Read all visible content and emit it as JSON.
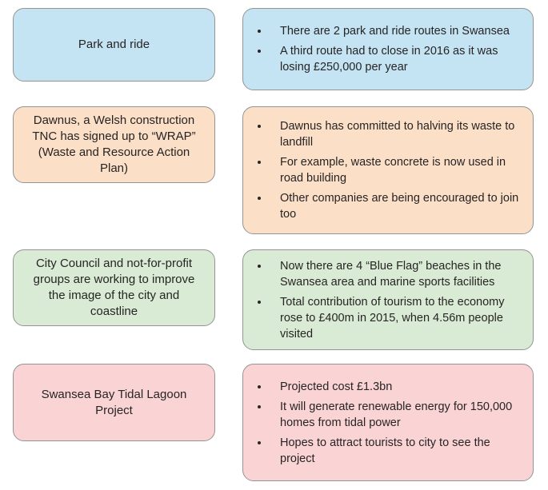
{
  "colors": {
    "row_fills": [
      "#C4E4F3",
      "#FBDFC6",
      "#D9EBD4",
      "#FAD4D5"
    ],
    "box_border": "#949494",
    "text": "#272425"
  },
  "rows": [
    {
      "topic_lines": [
        "Park and ride"
      ],
      "bullets": [
        "There are 2 park and ride routes in Swansea",
        "A third route had to close in 2016 as it was losing £250,000 per year"
      ]
    },
    {
      "topic_lines": [
        "Dawnus, a Welsh construction",
        "TNC has signed up to “WRAP”",
        "(Waste and Resource Action Plan)"
      ],
      "bullets": [
        "Dawnus has committed to halving its waste to landfill",
        "For example, waste concrete is now used in road building",
        "Other companies are being encouraged to join too"
      ]
    },
    {
      "topic_lines": [
        "City Council and not-for-profit",
        "groups are working to improve",
        "the image of the city and",
        "coastline"
      ],
      "bullets": [
        "Now there are 4 “Blue Flag” beaches in the Swansea area and marine sports facilities",
        "Total contribution of tourism to the economy rose to £400m in 2015, when 4.56m people visited"
      ]
    },
    {
      "topic_lines": [
        "Swansea Bay Tidal Lagoon Project"
      ],
      "bullets": [
        "Projected cost £1.3bn",
        "It will generate renewable energy for 150,000 homes from tidal power",
        "Hopes to attract tourists to city to see the project"
      ]
    }
  ]
}
